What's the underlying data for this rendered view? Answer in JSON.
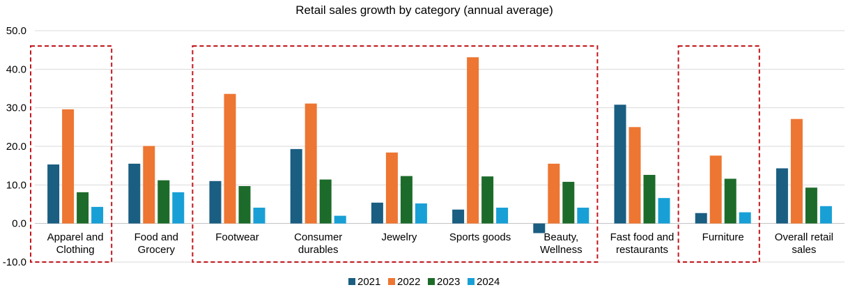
{
  "chart_data": {
    "type": "bar",
    "title": "Retail sales growth by category (annual average)",
    "xlabel": "",
    "ylabel": "",
    "ylim": [
      -10,
      50
    ],
    "yticks": [
      "-10.0",
      "0.0",
      "10.0",
      "20.0",
      "30.0",
      "40.0",
      "50.0"
    ],
    "ytick_values": [
      -10,
      0,
      10,
      20,
      30,
      40,
      50
    ],
    "grid": true,
    "legend_position": "bottom",
    "categories": [
      [
        "Apparel and",
        "Clothing"
      ],
      [
        "Food and",
        "Grocery"
      ],
      [
        "Footwear"
      ],
      [
        "Consumer",
        "durables"
      ],
      [
        "Jewelry"
      ],
      [
        "Sports goods"
      ],
      [
        "Beauty,",
        "Wellness"
      ],
      [
        "Fast food and",
        "restaurants"
      ],
      [
        "Furniture"
      ],
      [
        "Overall retail",
        "sales"
      ]
    ],
    "series": [
      {
        "name": "2021",
        "color": "#1a5e82",
        "values": [
          15.3,
          15.5,
          11.0,
          19.3,
          5.4,
          3.6,
          -2.5,
          30.8,
          2.7,
          14.3
        ]
      },
      {
        "name": "2022",
        "color": "#ed7632",
        "values": [
          29.6,
          20.1,
          33.6,
          31.1,
          18.4,
          43.1,
          15.5,
          25.0,
          17.6,
          27.1
        ]
      },
      {
        "name": "2023",
        "color": "#1d6b2b",
        "values": [
          8.1,
          11.2,
          9.7,
          11.4,
          12.3,
          12.2,
          10.8,
          12.6,
          11.6,
          9.3
        ]
      },
      {
        "name": "2024",
        "color": "#18a0d6",
        "values": [
          4.3,
          8.1,
          4.1,
          2.0,
          5.2,
          4.1,
          4.1,
          6.6,
          2.9,
          4.5
        ]
      }
    ],
    "highlight_groups": [
      {
        "categories": [
          0
        ],
        "style": "red-dashed-box"
      },
      {
        "categories": [
          2,
          3,
          4,
          5,
          6
        ],
        "style": "red-dashed-box"
      },
      {
        "categories": [
          8
        ],
        "style": "red-dashed-box"
      }
    ],
    "highlight_color": "#c0151b"
  }
}
